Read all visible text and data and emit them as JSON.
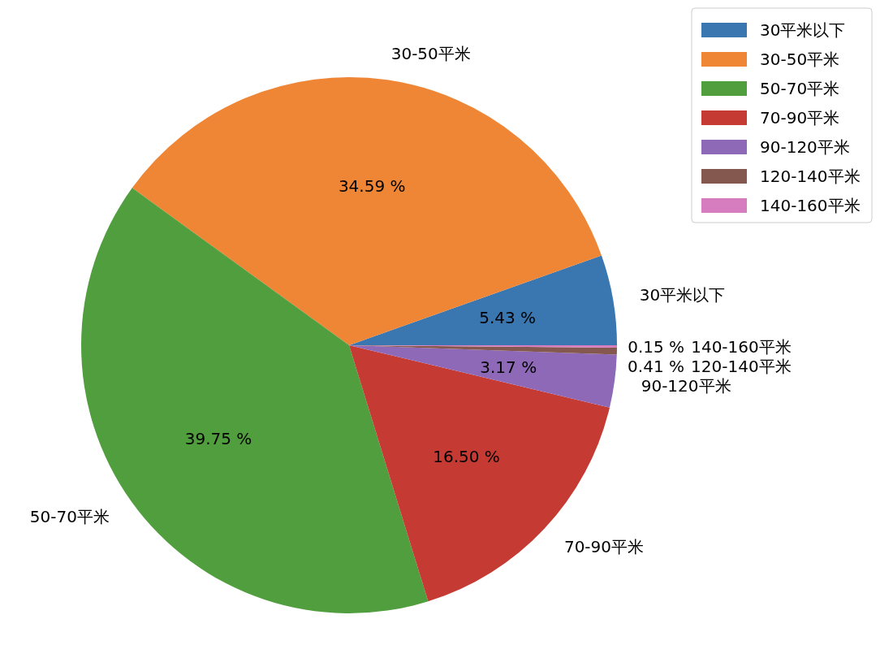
{
  "chart_data": {
    "type": "pie",
    "categories": [
      "30平米以下",
      "30-50平米",
      "50-70平米",
      "70-90平米",
      "90-120平米",
      "120-140平米",
      "140-160平米"
    ],
    "values": [
      5.43,
      34.59,
      39.75,
      16.5,
      3.17,
      0.41,
      0.15
    ],
    "colors": [
      "#3a76af",
      "#ef8636",
      "#519e3e",
      "#c53a32",
      "#8d69b8",
      "#84584e",
      "#d57dbe"
    ],
    "value_labels": [
      "5.43 %",
      "34.59 %",
      "39.75 %",
      "16.50 %",
      "3.17 %",
      "0.41 %",
      "0.15 %"
    ],
    "legend": "top right"
  }
}
